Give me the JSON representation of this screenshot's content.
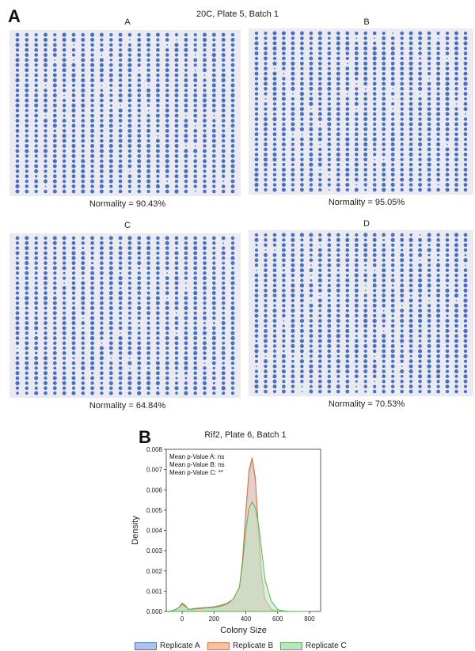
{
  "panel_a": {
    "label": "A",
    "title": "20C, Plate 5, Batch 1",
    "plates": [
      {
        "name": "A",
        "normality": "Normality = 90.43%",
        "dot_color": "#4a6fbf"
      },
      {
        "name": "B",
        "normality": "Normality = 95.05%",
        "dot_color": "#4a6fbf"
      },
      {
        "name": "C",
        "normality": "Normality = 64.84%",
        "dot_color": "#4a6fbf"
      },
      {
        "name": "D",
        "normality": "Normality = 70.53%",
        "dot_color": "#4a6fbf"
      }
    ]
  },
  "panel_b": {
    "label": "B",
    "title": "Rif2, Plate 6, Batch 1",
    "annotations": [
      "Mean p-Value A: ns",
      "Mean p-Value B: ns",
      "Mean p-Value C: **"
    ],
    "legend": [
      {
        "label": "Replicate A",
        "fill": "#aec3e6",
        "stroke": "#4a72b8"
      },
      {
        "label": "Replicate B",
        "fill": "#f5c2a6",
        "stroke": "#e0733a"
      },
      {
        "label": "Replicate C",
        "fill": "#bfe3c2",
        "stroke": "#4caf50"
      }
    ]
  },
  "chart_data": [
    {
      "type": "scatter",
      "title": "20C, Plate 5, Batch 1",
      "description_grid": "colony arrays",
      "panels": [
        "A",
        "B",
        "C",
        "D"
      ],
      "normality_percent": [
        90.43,
        95.05,
        64.84,
        70.53
      ]
    },
    {
      "type": "area",
      "title": "Rif2, Plate 6, Batch 1",
      "xlabel": "Colony Size",
      "ylabel": "Density",
      "xlim": [
        -100,
        870
      ],
      "ylim": [
        0,
        0.008
      ],
      "xticks": [
        0,
        200,
        400,
        600,
        800
      ],
      "yticks": [
        0.0,
        0.001,
        0.002,
        0.003,
        0.004,
        0.005,
        0.006,
        0.007,
        0.008
      ],
      "ytick_labels": [
        "0.000",
        "0.001",
        "0.002",
        "0.003",
        "0.004",
        "0.005",
        "0.006",
        "0.007",
        "0.008"
      ],
      "x": [
        -80,
        -40,
        -20,
        0,
        20,
        40,
        80,
        120,
        160,
        200,
        240,
        280,
        320,
        360,
        380,
        400,
        420,
        440,
        460,
        480,
        500,
        520,
        560,
        600,
        640,
        680,
        720,
        760,
        800
      ],
      "series": [
        {
          "name": "Replicate A",
          "values": [
            0.0,
            0.0001,
            0.0002,
            0.0004,
            0.0003,
            0.0001,
            0.00015,
            0.00018,
            0.0002,
            0.00023,
            0.0003,
            0.0004,
            0.0006,
            0.0012,
            0.0025,
            0.0048,
            0.0068,
            0.0075,
            0.0064,
            0.0038,
            0.0016,
            0.0006,
            0.0001,
            2e-05,
            0.0,
            0.0,
            0.0,
            0.0,
            0.0
          ]
        },
        {
          "name": "Replicate B",
          "values": [
            0.0,
            0.0001,
            0.0002,
            0.00042,
            0.0003,
            0.0001,
            0.00015,
            0.00018,
            0.0002,
            0.00023,
            0.0003,
            0.0004,
            0.0006,
            0.0012,
            0.0026,
            0.005,
            0.007,
            0.0076,
            0.0066,
            0.004,
            0.0017,
            0.0006,
            0.0001,
            2e-05,
            0.0,
            0.0,
            0.0,
            0.0,
            0.0
          ]
        },
        {
          "name": "Replicate C",
          "values": [
            0.0,
            0.0001,
            0.0002,
            0.00035,
            0.00025,
            0.0001,
            0.00012,
            0.00015,
            0.00018,
            0.0002,
            0.00025,
            0.00035,
            0.0006,
            0.0012,
            0.0024,
            0.004,
            0.0051,
            0.0054,
            0.0051,
            0.0043,
            0.003,
            0.0016,
            0.0005,
            0.0001,
            2e-05,
            0.0,
            0.0,
            0.0,
            0.0
          ]
        }
      ]
    }
  ]
}
